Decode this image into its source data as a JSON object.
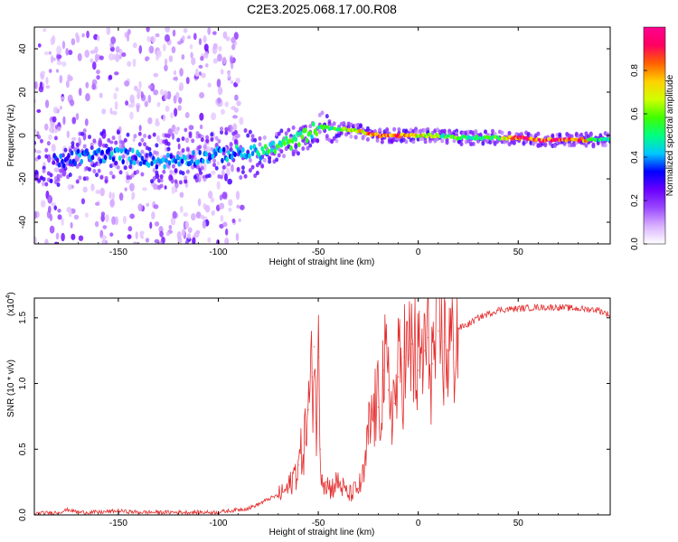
{
  "title": "C2E3.2025.068.17.00.R08",
  "colors": {
    "snr_line": "#e53030",
    "colormap": [
      "#ffffff",
      "#d9b0ff",
      "#9a48ff",
      "#6a00ff",
      "#0000ff",
      "#00c8ff",
      "#00ff80",
      "#40ff00",
      "#d0ff00",
      "#ffd000",
      "#ff6000",
      "#ff0060",
      "#ff0090"
    ]
  },
  "chart_data": [
    {
      "type": "heatmap",
      "name": "spectrogram",
      "xlabel": "Height of straight line (km)",
      "ylabel": "Frequency (Hz)",
      "xlim": [
        -192,
        96
      ],
      "ylim": [
        -50,
        50
      ],
      "xticks": [
        -150,
        -100,
        -50,
        0,
        50
      ],
      "xtick_labels": [
        "-150",
        "-100",
        "-50",
        "0",
        "50"
      ],
      "yticks": [
        -40,
        -20,
        0,
        20,
        40
      ],
      "ytick_labels": [
        "-40",
        "-20",
        "0",
        "20",
        "40"
      ],
      "colorbar": {
        "label": "Normalized spectral amplitude",
        "range": [
          0.0,
          1.0
        ],
        "ticks": [
          0.0,
          0.2,
          0.4,
          0.6,
          0.8
        ],
        "tick_labels": [
          "0.0",
          "0.2",
          "0.4",
          "0.6",
          "0.8"
        ]
      },
      "ridge": {
        "x": [
          -180,
          -170,
          -160,
          -150,
          -140,
          -130,
          -120,
          -110,
          -100,
          -90,
          -80,
          -70,
          -60,
          -50,
          -40,
          -30,
          -20,
          -10,
          0,
          10,
          20,
          30,
          40,
          50,
          60,
          70,
          80,
          90,
          96
        ],
        "y": [
          -12,
          -10,
          -9,
          -9,
          -10,
          -12,
          -11,
          -10,
          -9,
          -8,
          -8,
          -5,
          -2,
          4,
          3,
          2,
          0,
          0,
          0,
          0,
          -1,
          -1,
          -1,
          -1,
          -2,
          -2,
          -2,
          -2,
          -2
        ],
        "amplitude": [
          0.35,
          0.4,
          0.4,
          0.45,
          0.4,
          0.4,
          0.4,
          0.4,
          0.4,
          0.45,
          0.5,
          0.55,
          0.55,
          0.55,
          0.6,
          0.8,
          0.9,
          0.9,
          0.75,
          0.6,
          0.6,
          0.55,
          0.6,
          0.95,
          0.95,
          0.95,
          0.95,
          0.5,
          0.5
        ]
      }
    },
    {
      "type": "line",
      "name": "snr",
      "xlabel": "Height of straight line (km)",
      "ylabel": "SNR (10 * v/v)",
      "yscale_label": "(x10",
      "yscale_exp": "4",
      "yscale_close": ")",
      "xlim": [
        -192,
        96
      ],
      "ylim": [
        0,
        1.65
      ],
      "xticks": [
        -150,
        -100,
        -50,
        0,
        50
      ],
      "xtick_labels": [
        "-150",
        "-100",
        "-50",
        "0",
        "50"
      ],
      "yticks": [
        0.0,
        0.5,
        1.0,
        1.5
      ],
      "ytick_labels": [
        "0.0",
        "0.5",
        "1.0",
        "1.5"
      ],
      "x": [
        -192,
        -180,
        -175,
        -170,
        -160,
        -150,
        -140,
        -130,
        -120,
        -110,
        -100,
        -90,
        -85,
        -80,
        -75,
        -70,
        -65,
        -60,
        -57,
        -55,
        -53,
        -52,
        -51,
        -50,
        -49,
        -48,
        -46,
        -44,
        -40,
        -35,
        -30,
        -27,
        -25,
        -22,
        -20,
        -17,
        -15,
        -12,
        -10,
        -7,
        -5,
        -3,
        0,
        3,
        5,
        7,
        10,
        13,
        15,
        20,
        25,
        30,
        35,
        40,
        50,
        60,
        70,
        80,
        90,
        96
      ],
      "values": [
        0.01,
        0.02,
        0.04,
        0.02,
        0.02,
        0.03,
        0.02,
        0.02,
        0.02,
        0.02,
        0.02,
        0.04,
        0.05,
        0.08,
        0.12,
        0.15,
        0.2,
        0.38,
        0.55,
        0.8,
        1.05,
        1.28,
        0.7,
        1.2,
        0.5,
        0.3,
        0.25,
        0.2,
        0.25,
        0.15,
        0.2,
        0.3,
        0.6,
        0.8,
        0.82,
        1.1,
        0.95,
        0.85,
        1.05,
        1.2,
        1.15,
        1.3,
        1.1,
        1.25,
        1.35,
        1.15,
        1.4,
        1.32,
        1.25,
        1.42,
        1.45,
        1.5,
        1.53,
        1.56,
        1.57,
        1.58,
        1.58,
        1.57,
        1.56,
        1.52
      ]
    }
  ]
}
